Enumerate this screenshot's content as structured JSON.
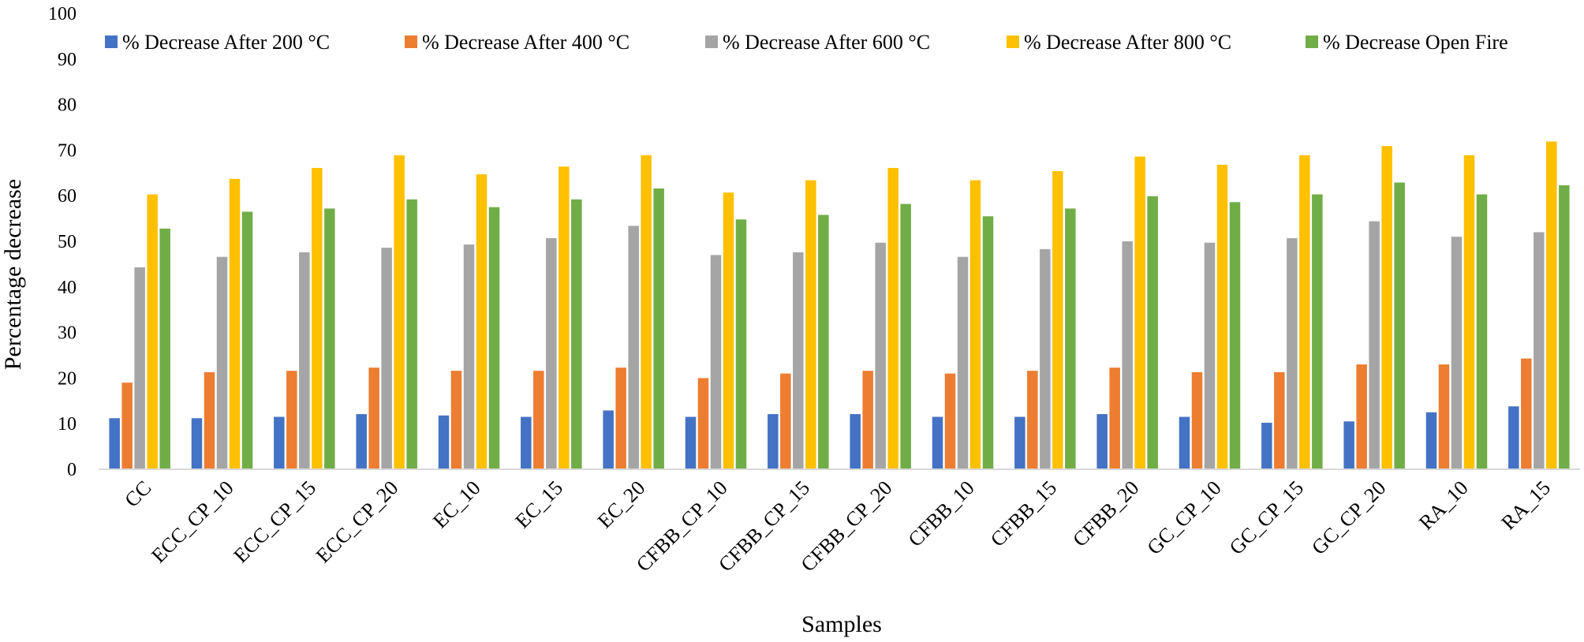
{
  "chart_data": {
    "type": "bar",
    "title": "",
    "xlabel": "Samples",
    "ylabel": "Percentage decrease",
    "ylim": [
      0,
      100
    ],
    "yticks": [
      0,
      10,
      20,
      30,
      40,
      50,
      60,
      70,
      80,
      90,
      100
    ],
    "grid": false,
    "legend_position": "top",
    "categories": [
      "CC",
      "ECC_CP_10",
      "ECC_CP_15",
      "ECC_CP_20",
      "EC_10",
      "EC_15",
      "EC_20",
      "CFBB_CP_10",
      "CFBB_CP_15",
      "CFBB_CP_20",
      "CFBB_10",
      "CFBB_15",
      "CFBB_20",
      "GC_CP_10",
      "GC_CP_15",
      "GC_CP_20",
      "RA_10",
      "RA_15"
    ],
    "series": [
      {
        "name": "% Decrease  After 200 °C",
        "color": "#4472C4",
        "values": [
          11.2,
          11.2,
          11.5,
          12.1,
          11.8,
          11.5,
          12.9,
          11.5,
          12.1,
          12.1,
          11.5,
          11.5,
          12.1,
          11.5,
          10.2,
          10.5,
          12.5,
          13.8
        ]
      },
      {
        "name": "% Decrease  After 400 °C",
        "color": "#ED7D31",
        "values": [
          19.0,
          21.3,
          21.6,
          22.3,
          21.6,
          21.6,
          22.3,
          20.0,
          21.0,
          21.6,
          21.0,
          21.6,
          22.3,
          21.3,
          21.3,
          23.0,
          23.0,
          24.3
        ]
      },
      {
        "name": "% Decrease  After 600 °C",
        "color": "#A5A5A5",
        "values": [
          44.3,
          46.6,
          47.6,
          48.6,
          49.3,
          50.7,
          53.4,
          47.0,
          47.6,
          49.7,
          46.6,
          48.3,
          50.0,
          49.7,
          50.7,
          54.4,
          51.0,
          52.0
        ]
      },
      {
        "name": "% Decrease  After 800 °C",
        "color": "#FFC000",
        "values": [
          60.3,
          63.7,
          66.1,
          68.9,
          64.7,
          66.4,
          68.9,
          60.7,
          63.4,
          66.1,
          63.4,
          65.4,
          68.6,
          66.8,
          68.9,
          70.9,
          68.9,
          71.9
        ]
      },
      {
        "name": "% Decrease  Open Fire",
        "color": "#70AD47",
        "values": [
          52.8,
          56.5,
          57.2,
          59.2,
          57.5,
          59.2,
          61.6,
          54.8,
          55.8,
          58.2,
          55.5,
          57.2,
          59.9,
          58.6,
          60.3,
          62.9,
          60.3,
          62.3
        ]
      }
    ]
  }
}
